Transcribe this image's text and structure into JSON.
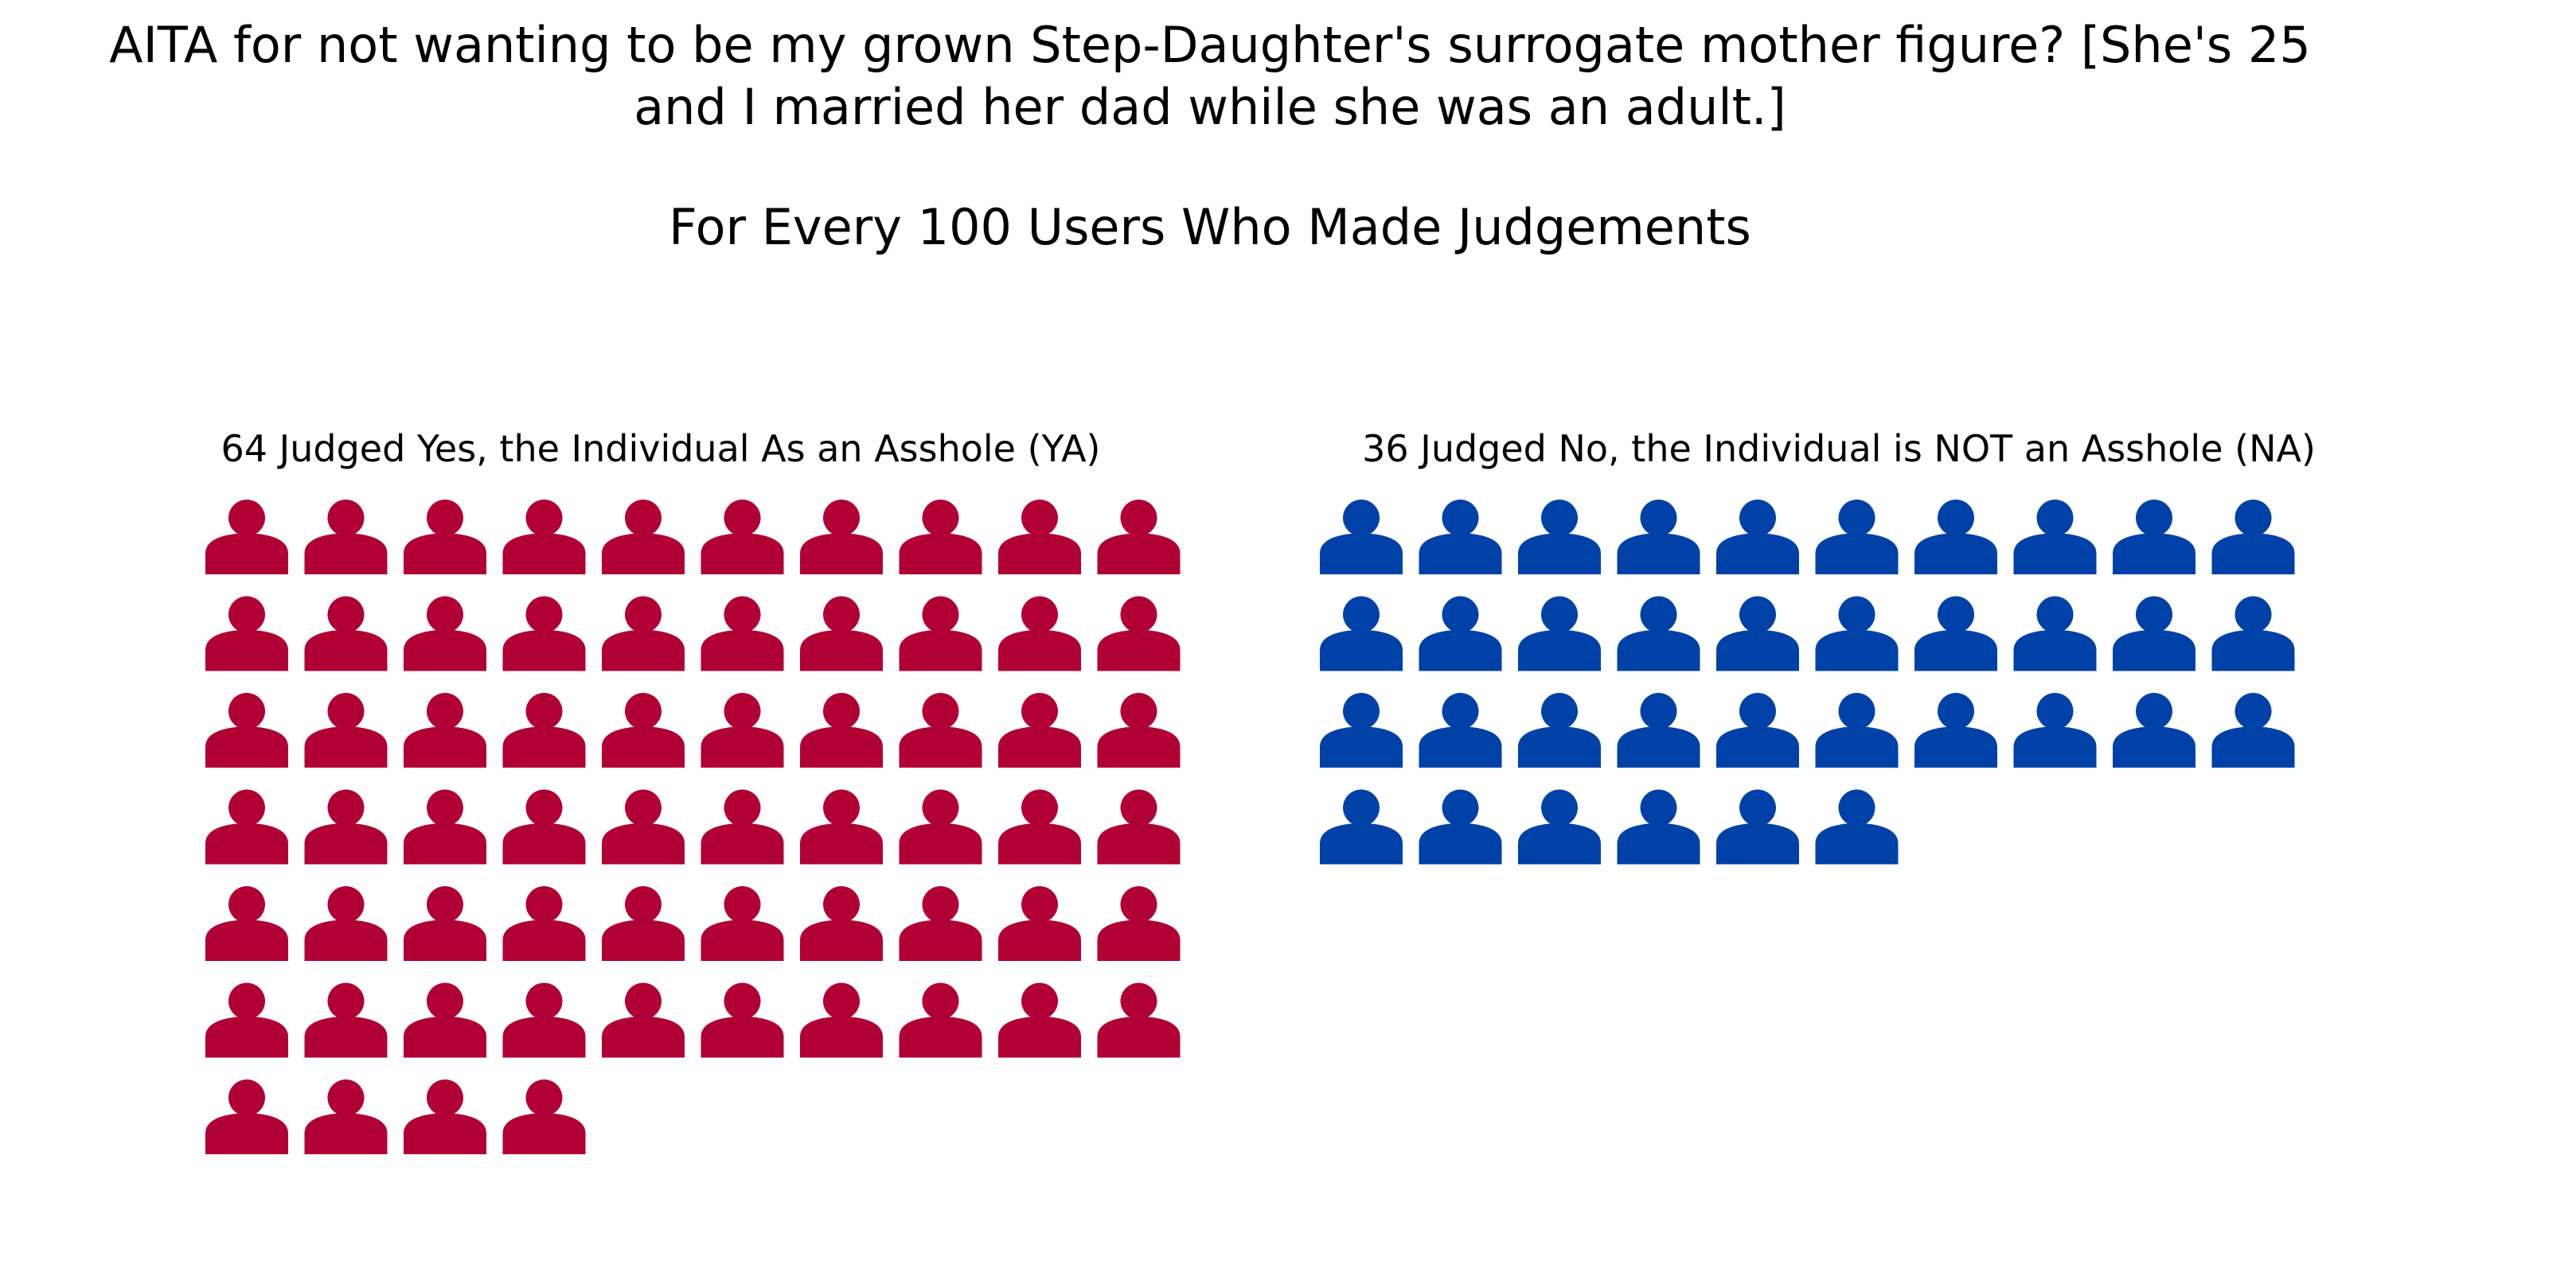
{
  "title_lines": [
    "AITA for not wanting to be my grown Step-Daughter's surrogate mother figure? [She's 25",
    "and I married her dad while she was an adult.]"
  ],
  "subtitle": "For Every 100 Users Who Made Judgements",
  "chart_data": {
    "type": "pictogram",
    "unit": "person-icon",
    "total": 100,
    "icons_per_row": 10,
    "panels": [
      {
        "label": "64 Judged Yes, the Individual As an Asshole (YA)",
        "count": 64,
        "color": "#b10034"
      },
      {
        "label": "36 Judged No, the Individual is NOT an Asshole (NA)",
        "count": 36,
        "color": "#0041a8"
      }
    ]
  }
}
